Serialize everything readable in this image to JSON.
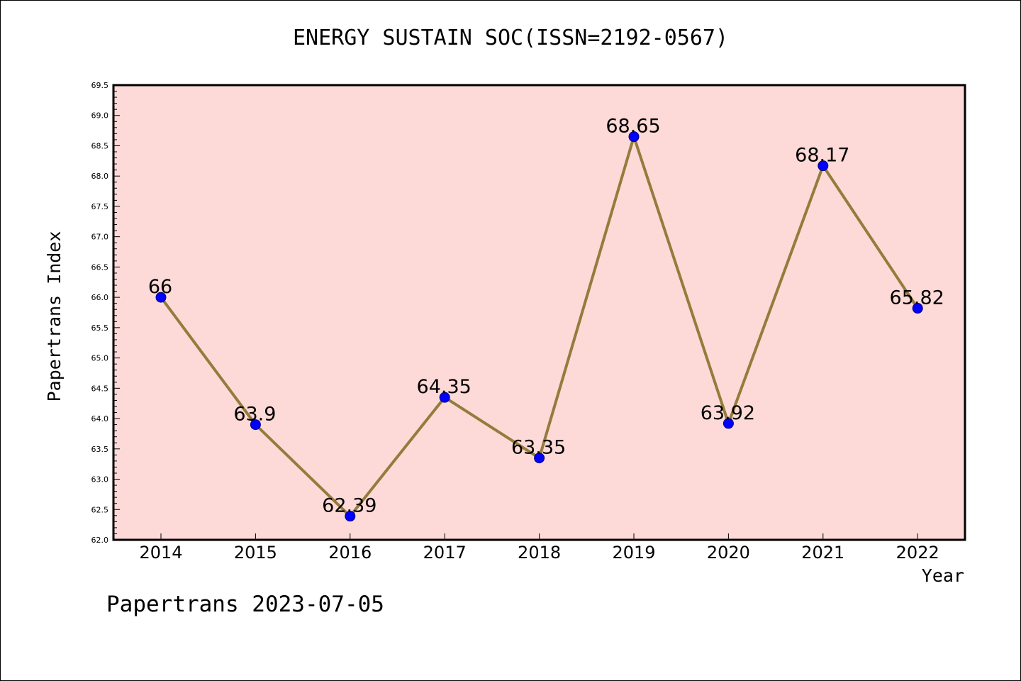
{
  "title": "ENERGY SUSTAIN SOC(ISSN=2192-0567)",
  "footer": "Papertrans 2023-07-05",
  "colors": {
    "plot_background": "#fddad7",
    "line": "#947c3c",
    "marker": "#0000ff",
    "axis": "#000000"
  },
  "chart_data": {
    "type": "line",
    "xlabel": "Year",
    "ylabel": "Papertrans Index",
    "ylim": [
      62.0,
      69.5
    ],
    "yticks": [
      "62.0",
      "62.5",
      "63.0",
      "63.5",
      "64.0",
      "64.5",
      "65.0",
      "65.5",
      "66.0",
      "66.5",
      "67.0",
      "67.5",
      "68.0",
      "68.5",
      "69.0",
      "69.5"
    ],
    "categories": [
      "2014",
      "2015",
      "2016",
      "2017",
      "2018",
      "2019",
      "2020",
      "2021",
      "2022"
    ],
    "values": [
      66,
      63.9,
      62.39,
      64.35,
      63.35,
      68.65,
      63.92,
      68.17,
      65.82
    ],
    "data_labels": [
      "66",
      "63.9",
      "62.39",
      "64.35",
      "63.35",
      "68.65",
      "63.92",
      "68.17",
      "65.82"
    ],
    "grid": false,
    "marker": "circle"
  }
}
